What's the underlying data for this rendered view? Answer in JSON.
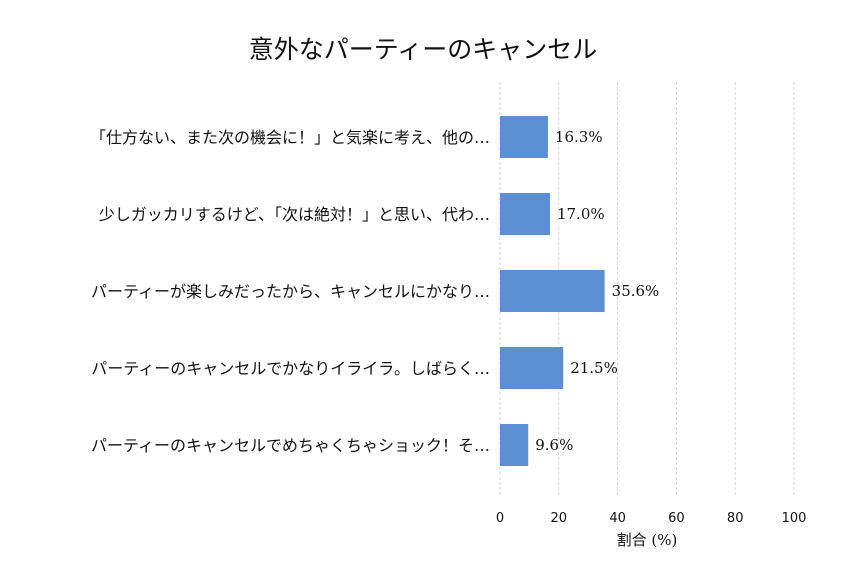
{
  "chart_data": {
    "type": "bar",
    "orientation": "horizontal",
    "title": "意外なパーティーのキャンセル",
    "xlabel": "割合 (%)",
    "ylabel": "",
    "xlim": [
      0,
      100
    ],
    "xticks": [
      0,
      20,
      40,
      60,
      80,
      100
    ],
    "grid": true,
    "bar_color": "#5b8fd1",
    "grid_color": "#cccccc",
    "categories": [
      "「仕方ない、また次の機会に！」と気楽に考え、他の…",
      "少しガッカリするけど、「次は絶対！」と思い、代わ…",
      "パーティーが楽しみだったから、キャンセルにかなり…",
      "パーティーのキャンセルでかなりイライラ。しばらく…",
      "パーティーのキャンセルでめちゃくちゃショック！そ…"
    ],
    "values": [
      16.3,
      17.0,
      35.6,
      21.5,
      9.6
    ],
    "value_labels": [
      "16.3%",
      "17.0%",
      "35.6%",
      "21.5%",
      "9.6%"
    ]
  }
}
